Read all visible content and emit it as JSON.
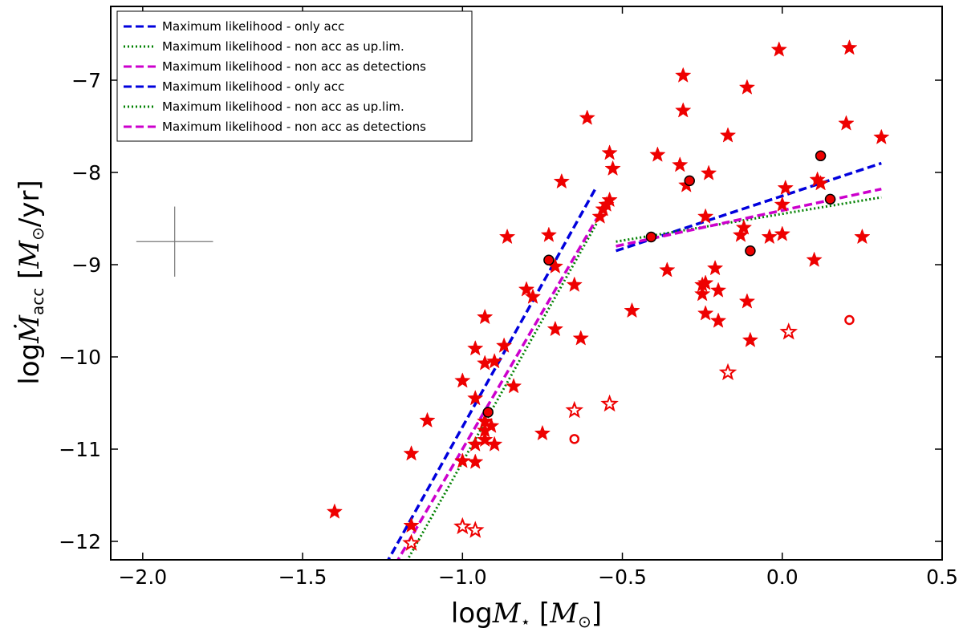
{
  "chart_data": {
    "type": "scatter",
    "title": "",
    "xlabel": "logM⋆ [M⊙]",
    "ylabel": "logṀacc [M⊙/yr]",
    "xlabel_parts": {
      "prefix": "log",
      "symbol": "M",
      "sub": "⋆",
      "units": "M",
      "units_sub": "⊙"
    },
    "ylabel_parts": {
      "prefix": "log",
      "symbol": "Ṁ",
      "sub": "acc",
      "units_prefix": "M",
      "units_sub": "⊙",
      "units_suffix": "/yr"
    },
    "xlim": [
      -2.1,
      0.5
    ],
    "ylim": [
      -12.2,
      -6.2
    ],
    "xticks": [
      -2.0,
      -1.5,
      -1.0,
      -0.5,
      0.0,
      0.5
    ],
    "xtick_labels": [
      "−2.0",
      "−1.5",
      "−1.0",
      "−0.5",
      "0.0",
      "0.5"
    ],
    "yticks": [
      -12,
      -11,
      -10,
      -9,
      -8,
      -7
    ],
    "ytick_labels": [
      "−12",
      "−11",
      "−10",
      "−9",
      "−8",
      "−7"
    ],
    "legend_position": "top-left",
    "colors": {
      "points": "#ee0000",
      "only_acc": "#0000dd",
      "uplim": "#008000",
      "detections": "#cc00cc",
      "error_bar": "#777777"
    },
    "series": [
      {
        "name": "Maximum likelihood - only acc",
        "style": "dashed",
        "color": "#0000dd",
        "x": [
          -1.24,
          -0.58
        ],
        "y": [
          -12.25,
          -8.15
        ]
      },
      {
        "name": "Maximum likelihood - non acc as up.lim.",
        "style": "dotted",
        "color": "#008000",
        "x": [
          -1.18,
          -0.58
        ],
        "y": [
          -12.25,
          -8.55
        ]
      },
      {
        "name": "Maximum likelihood - non acc as detections",
        "style": "dashed",
        "color": "#cc00cc",
        "x": [
          -1.21,
          -0.58
        ],
        "y": [
          -12.25,
          -8.5
        ]
      },
      {
        "name": "Maximum likelihood - only acc",
        "style": "dashed",
        "color": "#0000dd",
        "x": [
          -0.52,
          0.31
        ],
        "y": [
          -8.85,
          -7.9
        ]
      },
      {
        "name": "Maximum likelihood - non acc as up.lim.",
        "style": "dotted",
        "color": "#008000",
        "x": [
          -0.52,
          0.31
        ],
        "y": [
          -8.75,
          -8.27
        ]
      },
      {
        "name": "Maximum likelihood - non acc as detections",
        "style": "dashed",
        "color": "#cc00cc",
        "x": [
          -0.52,
          0.31
        ],
        "y": [
          -8.8,
          -8.18
        ]
      }
    ],
    "error_bar": {
      "x": -1.9,
      "y": -8.75,
      "xerr": 0.12,
      "yerr": 0.38
    },
    "filled_stars": [
      {
        "x": -1.4,
        "y": -11.68
      },
      {
        "x": -1.16,
        "y": -11.05
      },
      {
        "x": -1.11,
        "y": -10.69
      },
      {
        "x": -1.16,
        "y": -11.83
      },
      {
        "x": -1.0,
        "y": -10.26
      },
      {
        "x": -1.0,
        "y": -11.13
      },
      {
        "x": -0.96,
        "y": -9.91
      },
      {
        "x": -0.96,
        "y": -10.45
      },
      {
        "x": -0.96,
        "y": -10.95
      },
      {
        "x": -0.96,
        "y": -11.14
      },
      {
        "x": -0.93,
        "y": -9.57
      },
      {
        "x": -0.93,
        "y": -10.07
      },
      {
        "x": -0.93,
        "y": -10.7
      },
      {
        "x": -0.93,
        "y": -10.8
      },
      {
        "x": -0.93,
        "y": -10.9
      },
      {
        "x": -0.9,
        "y": -10.05
      },
      {
        "x": -0.9,
        "y": -10.95
      },
      {
        "x": -0.87,
        "y": -9.88
      },
      {
        "x": -0.86,
        "y": -8.7
      },
      {
        "x": -0.84,
        "y": -10.32
      },
      {
        "x": -0.8,
        "y": -9.27
      },
      {
        "x": -0.78,
        "y": -9.35
      },
      {
        "x": -0.75,
        "y": -10.83
      },
      {
        "x": -0.73,
        "y": -8.68
      },
      {
        "x": -0.71,
        "y": -9.7
      },
      {
        "x": -0.71,
        "y": -9.02
      },
      {
        "x": -0.69,
        "y": -8.1
      },
      {
        "x": -0.65,
        "y": -9.22
      },
      {
        "x": -0.63,
        "y": -9.8
      },
      {
        "x": -0.61,
        "y": -7.41
      },
      {
        "x": -0.57,
        "y": -8.48
      },
      {
        "x": -0.56,
        "y": -8.4
      },
      {
        "x": -0.55,
        "y": -8.35
      },
      {
        "x": -0.54,
        "y": -8.3
      },
      {
        "x": -0.54,
        "y": -7.79
      },
      {
        "x": -0.53,
        "y": -7.96
      },
      {
        "x": -0.47,
        "y": -9.5
      },
      {
        "x": -0.39,
        "y": -7.81
      },
      {
        "x": -0.36,
        "y": -9.06
      },
      {
        "x": -0.32,
        "y": -7.92
      },
      {
        "x": -0.31,
        "y": -6.95
      },
      {
        "x": -0.31,
        "y": -7.33
      },
      {
        "x": -0.3,
        "y": -8.14
      },
      {
        "x": -0.25,
        "y": -9.22
      },
      {
        "x": -0.25,
        "y": -9.32
      },
      {
        "x": -0.24,
        "y": -8.48
      },
      {
        "x": -0.24,
        "y": -9.2
      },
      {
        "x": -0.24,
        "y": -9.53
      },
      {
        "x": -0.23,
        "y": -8.01
      },
      {
        "x": -0.21,
        "y": -9.04
      },
      {
        "x": -0.2,
        "y": -9.28
      },
      {
        "x": -0.2,
        "y": -9.61
      },
      {
        "x": -0.17,
        "y": -7.6
      },
      {
        "x": -0.13,
        "y": -8.68
      },
      {
        "x": -0.12,
        "y": -8.6
      },
      {
        "x": -0.11,
        "y": -7.08
      },
      {
        "x": -0.11,
        "y": -9.4
      },
      {
        "x": -0.1,
        "y": -9.82
      },
      {
        "x": -0.04,
        "y": -8.7
      },
      {
        "x": -0.01,
        "y": -6.67
      },
      {
        "x": 0.0,
        "y": -8.67
      },
      {
        "x": 0.0,
        "y": -8.35
      },
      {
        "x": 0.01,
        "y": -8.17
      },
      {
        "x": 0.1,
        "y": -8.95
      },
      {
        "x": 0.11,
        "y": -8.08
      },
      {
        "x": 0.12,
        "y": -8.12
      },
      {
        "x": 0.2,
        "y": -7.47
      },
      {
        "x": 0.21,
        "y": -6.65
      },
      {
        "x": 0.25,
        "y": -8.7
      },
      {
        "x": 0.31,
        "y": -7.62
      },
      {
        "x": -0.91,
        "y": -10.75
      }
    ],
    "open_stars": [
      {
        "x": -1.16,
        "y": -12.02
      },
      {
        "x": -1.0,
        "y": -11.84
      },
      {
        "x": -0.96,
        "y": -11.88
      },
      {
        "x": -0.65,
        "y": -10.58
      },
      {
        "x": -0.54,
        "y": -10.51
      },
      {
        "x": -0.17,
        "y": -10.17
      },
      {
        "x": 0.02,
        "y": -9.73
      }
    ],
    "circled_points": [
      {
        "x": -0.92,
        "y": -10.6
      },
      {
        "x": -0.73,
        "y": -8.95
      },
      {
        "x": -0.41,
        "y": -8.7
      },
      {
        "x": -0.29,
        "y": -8.09
      },
      {
        "x": -0.1,
        "y": -8.85
      },
      {
        "x": 0.12,
        "y": -7.82
      },
      {
        "x": 0.15,
        "y": -8.29
      }
    ],
    "open_circles": [
      {
        "x": -0.65,
        "y": -10.89
      },
      {
        "x": 0.21,
        "y": -9.6
      }
    ]
  }
}
